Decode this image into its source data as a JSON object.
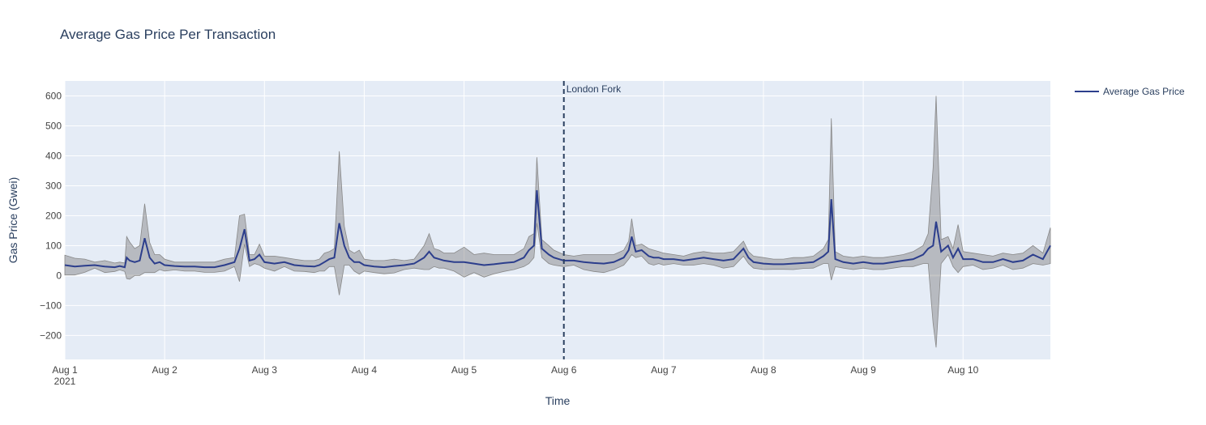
{
  "chart_data": {
    "type": "line",
    "title": "Average Gas Price Per Transaction",
    "xlabel": "Time",
    "ylabel": "Gas Price (Gwei)",
    "ylim": [
      -280,
      650
    ],
    "xlim": [
      0,
      9.875
    ],
    "x_ticks": [
      {
        "v": 0,
        "label": "Aug 1",
        "sub": "2021"
      },
      {
        "v": 1,
        "label": "Aug 2",
        "sub": ""
      },
      {
        "v": 2,
        "label": "Aug 3",
        "sub": ""
      },
      {
        "v": 3,
        "label": "Aug 4",
        "sub": ""
      },
      {
        "v": 4,
        "label": "Aug 5",
        "sub": ""
      },
      {
        "v": 5,
        "label": "Aug 6",
        "sub": ""
      },
      {
        "v": 6,
        "label": "Aug 7",
        "sub": ""
      },
      {
        "v": 7,
        "label": "Aug 8",
        "sub": ""
      },
      {
        "v": 8,
        "label": "Aug 9",
        "sub": ""
      },
      {
        "v": 9,
        "label": "Aug 10",
        "sub": ""
      }
    ],
    "y_ticks": [
      -200,
      -100,
      0,
      100,
      200,
      300,
      400,
      500,
      600
    ],
    "grid": true,
    "legend_position": "top-right",
    "series": [
      {
        "name": "Average Gas Price",
        "color": "#2c3e8c",
        "band_color": "#7f7f7f",
        "points": [
          [
            0.0,
            35,
            68
          ],
          [
            0.1,
            30,
            58
          ],
          [
            0.2,
            33,
            55
          ],
          [
            0.3,
            35,
            45
          ],
          [
            0.4,
            30,
            50
          ],
          [
            0.5,
            28,
            42
          ],
          [
            0.55,
            32,
            45
          ],
          [
            0.6,
            28,
            42
          ],
          [
            0.62,
            60,
            130
          ],
          [
            0.65,
            50,
            112
          ],
          [
            0.7,
            45,
            90
          ],
          [
            0.75,
            50,
            100
          ],
          [
            0.8,
            125,
            240
          ],
          [
            0.85,
            60,
            110
          ],
          [
            0.9,
            40,
            70
          ],
          [
            0.95,
            45,
            70
          ],
          [
            1.0,
            35,
            55
          ],
          [
            1.1,
            32,
            45
          ],
          [
            1.2,
            30,
            45
          ],
          [
            1.3,
            30,
            45
          ],
          [
            1.4,
            28,
            45
          ],
          [
            1.5,
            28,
            45
          ],
          [
            1.6,
            35,
            55
          ],
          [
            1.7,
            45,
            60
          ],
          [
            1.75,
            90,
            200
          ],
          [
            1.8,
            155,
            205
          ],
          [
            1.85,
            50,
            70
          ],
          [
            1.9,
            55,
            70
          ],
          [
            1.95,
            70,
            105
          ],
          [
            2.0,
            45,
            65
          ],
          [
            2.1,
            40,
            65
          ],
          [
            2.2,
            45,
            60
          ],
          [
            2.3,
            35,
            55
          ],
          [
            2.4,
            32,
            50
          ],
          [
            2.5,
            30,
            50
          ],
          [
            2.55,
            35,
            55
          ],
          [
            2.6,
            45,
            75
          ],
          [
            2.65,
            55,
            80
          ],
          [
            2.7,
            60,
            90
          ],
          [
            2.75,
            175,
            415
          ],
          [
            2.8,
            100,
            165
          ],
          [
            2.85,
            60,
            85
          ],
          [
            2.9,
            45,
            75
          ],
          [
            2.95,
            45,
            85
          ],
          [
            3.0,
            35,
            55
          ],
          [
            3.1,
            30,
            50
          ],
          [
            3.2,
            28,
            50
          ],
          [
            3.3,
            32,
            55
          ],
          [
            3.4,
            35,
            50
          ],
          [
            3.5,
            40,
            55
          ],
          [
            3.6,
            60,
            100
          ],
          [
            3.65,
            80,
            140
          ],
          [
            3.7,
            60,
            90
          ],
          [
            3.75,
            55,
            85
          ],
          [
            3.8,
            50,
            75
          ],
          [
            3.9,
            45,
            75
          ],
          [
            4.0,
            45,
            95
          ],
          [
            4.1,
            40,
            70
          ],
          [
            4.2,
            35,
            75
          ],
          [
            4.3,
            38,
            70
          ],
          [
            4.4,
            42,
            70
          ],
          [
            4.5,
            45,
            70
          ],
          [
            4.6,
            60,
            90
          ],
          [
            4.65,
            85,
            130
          ],
          [
            4.7,
            100,
            140
          ],
          [
            4.73,
            285,
            395
          ],
          [
            4.78,
            90,
            120
          ],
          [
            4.85,
            70,
            100
          ],
          [
            4.9,
            60,
            85
          ],
          [
            5.0,
            50,
            70
          ],
          [
            5.1,
            50,
            65
          ],
          [
            5.2,
            45,
            70
          ],
          [
            5.3,
            42,
            70
          ],
          [
            5.4,
            40,
            70
          ],
          [
            5.5,
            45,
            70
          ],
          [
            5.6,
            60,
            85
          ],
          [
            5.65,
            85,
            115
          ],
          [
            5.68,
            130,
            190
          ],
          [
            5.72,
            80,
            100
          ],
          [
            5.78,
            85,
            105
          ],
          [
            5.85,
            65,
            90
          ],
          [
            5.9,
            60,
            85
          ],
          [
            5.95,
            60,
            80
          ],
          [
            6.0,
            55,
            75
          ],
          [
            6.1,
            55,
            70
          ],
          [
            6.2,
            50,
            65
          ],
          [
            6.3,
            55,
            75
          ],
          [
            6.4,
            60,
            80
          ],
          [
            6.5,
            55,
            75
          ],
          [
            6.6,
            50,
            75
          ],
          [
            6.7,
            55,
            80
          ],
          [
            6.8,
            90,
            115
          ],
          [
            6.85,
            60,
            80
          ],
          [
            6.9,
            45,
            65
          ],
          [
            7.0,
            40,
            60
          ],
          [
            7.1,
            38,
            55
          ],
          [
            7.2,
            38,
            55
          ],
          [
            7.3,
            40,
            60
          ],
          [
            7.4,
            42,
            60
          ],
          [
            7.5,
            45,
            65
          ],
          [
            7.6,
            65,
            90
          ],
          [
            7.65,
            80,
            120
          ],
          [
            7.68,
            255,
            525
          ],
          [
            7.72,
            55,
            80
          ],
          [
            7.8,
            45,
            65
          ],
          [
            7.9,
            40,
            60
          ],
          [
            8.0,
            45,
            65
          ],
          [
            8.1,
            40,
            60
          ],
          [
            8.2,
            40,
            60
          ],
          [
            8.3,
            45,
            65
          ],
          [
            8.4,
            50,
            70
          ],
          [
            8.5,
            55,
            80
          ],
          [
            8.6,
            70,
            100
          ],
          [
            8.65,
            90,
            140
          ],
          [
            8.7,
            100,
            360
          ],
          [
            8.73,
            180,
            600
          ],
          [
            8.78,
            80,
            120
          ],
          [
            8.85,
            100,
            130
          ],
          [
            8.9,
            60,
            90
          ],
          [
            8.95,
            90,
            170
          ],
          [
            9.0,
            55,
            80
          ],
          [
            9.1,
            55,
            75
          ],
          [
            9.2,
            45,
            70
          ],
          [
            9.3,
            45,
            65
          ],
          [
            9.4,
            55,
            75
          ],
          [
            9.5,
            45,
            70
          ],
          [
            9.6,
            50,
            75
          ],
          [
            9.7,
            70,
            100
          ],
          [
            9.8,
            55,
            75
          ],
          [
            9.875,
            100,
            160
          ]
        ]
      }
    ],
    "band_low_offsets": "derived",
    "annotation": {
      "x": 5,
      "label": "London Fork"
    }
  }
}
